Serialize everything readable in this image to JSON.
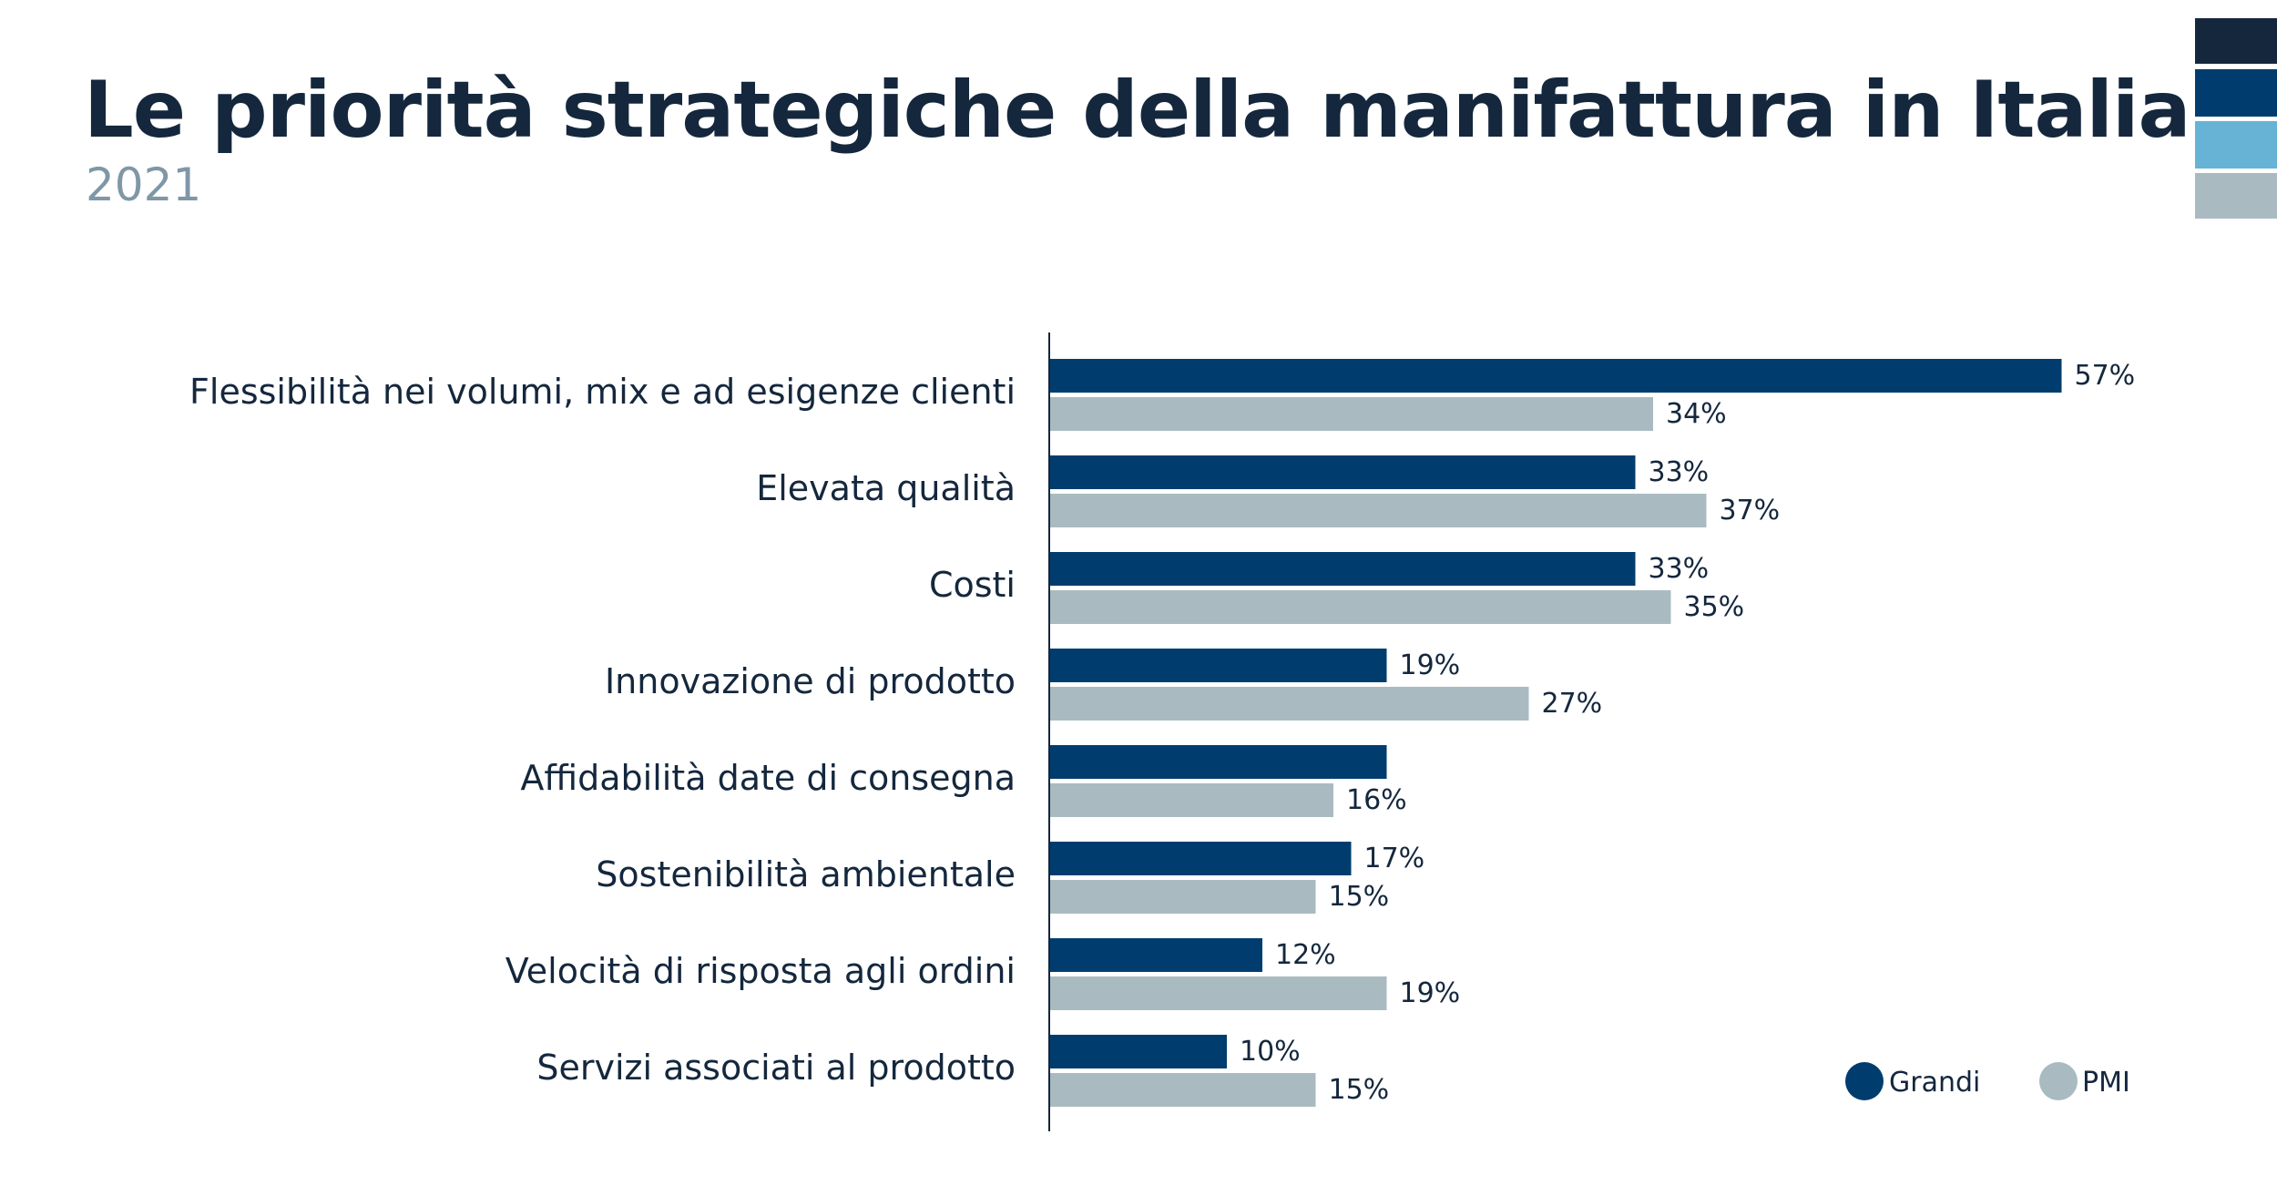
{
  "header": {
    "title": "Le priorità strategiche della manifattura in Italia",
    "subtitle": "2021"
  },
  "corner_swatches": [
    "#14273d",
    "#003d6e",
    "#66b3d6",
    "#a9bbc0"
  ],
  "chart_data": {
    "type": "bar",
    "orientation": "horizontal",
    "title": "",
    "xlabel": "",
    "ylabel": "",
    "categories": [
      "Flessibilità nei volumi, mix e ad esigenze clienti",
      "Elevata qualità",
      "Costi",
      "Innovazione di prodotto",
      "Affidabilità date di consegna",
      "Sostenibilità ambientale",
      "Velocità di risposta agli ordini",
      "Servizi associati al prodotto"
    ],
    "series": [
      {
        "name": "Grandi",
        "color": "#003d6e",
        "values": [
          57,
          33,
          33,
          19,
          19,
          17,
          12,
          10
        ],
        "labels": [
          "57%",
          "33%",
          "33%",
          "19%",
          "",
          "17%",
          "12%",
          "10%"
        ]
      },
      {
        "name": "PMI",
        "color": "#a9bbc0",
        "values": [
          34,
          37,
          35,
          27,
          16,
          15,
          19,
          15
        ],
        "labels": [
          "34%",
          "37%",
          "35%",
          "27%",
          "16%",
          "15%",
          "19%",
          "15%"
        ]
      }
    ],
    "unit": "%",
    "legend_position": "bottom-right",
    "grid": false
  }
}
